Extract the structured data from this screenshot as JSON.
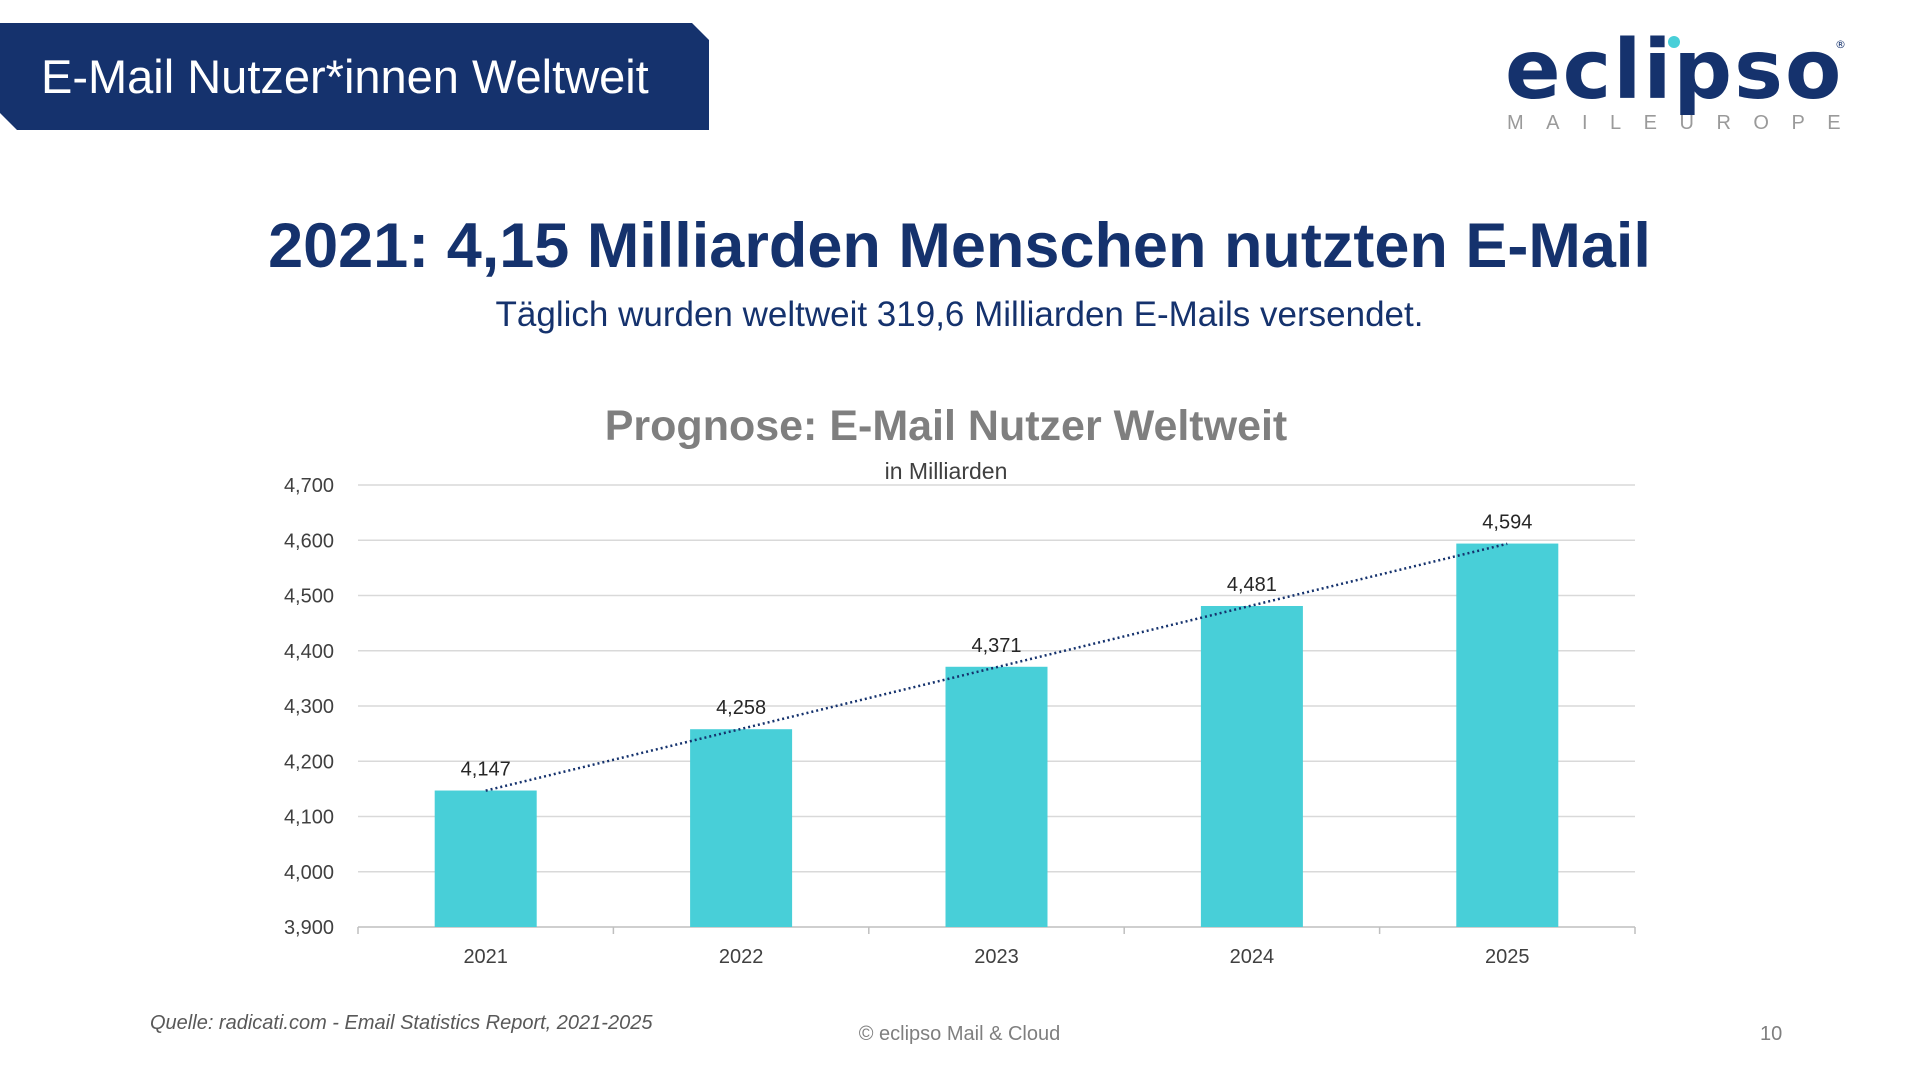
{
  "header": {
    "banner_title": "E-Mail Nutzer*innen Weltweit",
    "banner_color": "#15326d"
  },
  "logo": {
    "word": "eclipso",
    "sub": "MAILEUROPE",
    "reg": "®"
  },
  "headline": "2021: 4,15 Milliarden Menschen nutzten E-Mail",
  "subline": "Täglich wurden weltweit 319,6 Milliarden E-Mails versendet.",
  "chart_data": {
    "type": "bar",
    "title": "Prognose: E-Mail Nutzer Weltweit",
    "subtitle": "in Milliarden",
    "categories": [
      "2021",
      "2022",
      "2023",
      "2024",
      "2025"
    ],
    "values": [
      4.147,
      4.258,
      4.371,
      4.481,
      4.594
    ],
    "value_labels": [
      "4,147",
      "4,258",
      "4,371",
      "4,481",
      "4,594"
    ],
    "ylim": [
      3.9,
      4.7
    ],
    "yticks": [
      3.9,
      4.0,
      4.1,
      4.2,
      4.3,
      4.4,
      4.5,
      4.6,
      4.7
    ],
    "ytick_labels": [
      "3,900",
      "4,000",
      "4,100",
      "4,200",
      "4,300",
      "4,400",
      "4,500",
      "4,600",
      "4,700"
    ],
    "trendline": "linear",
    "grid": true,
    "bar_color": "#48cfd8",
    "trend_color": "#15326d"
  },
  "footer": {
    "source": "Quelle: radicati.com - Email Statistics Report, 2021-2025",
    "copyright": "© eclipso Mail & Cloud",
    "page_number": "10"
  }
}
